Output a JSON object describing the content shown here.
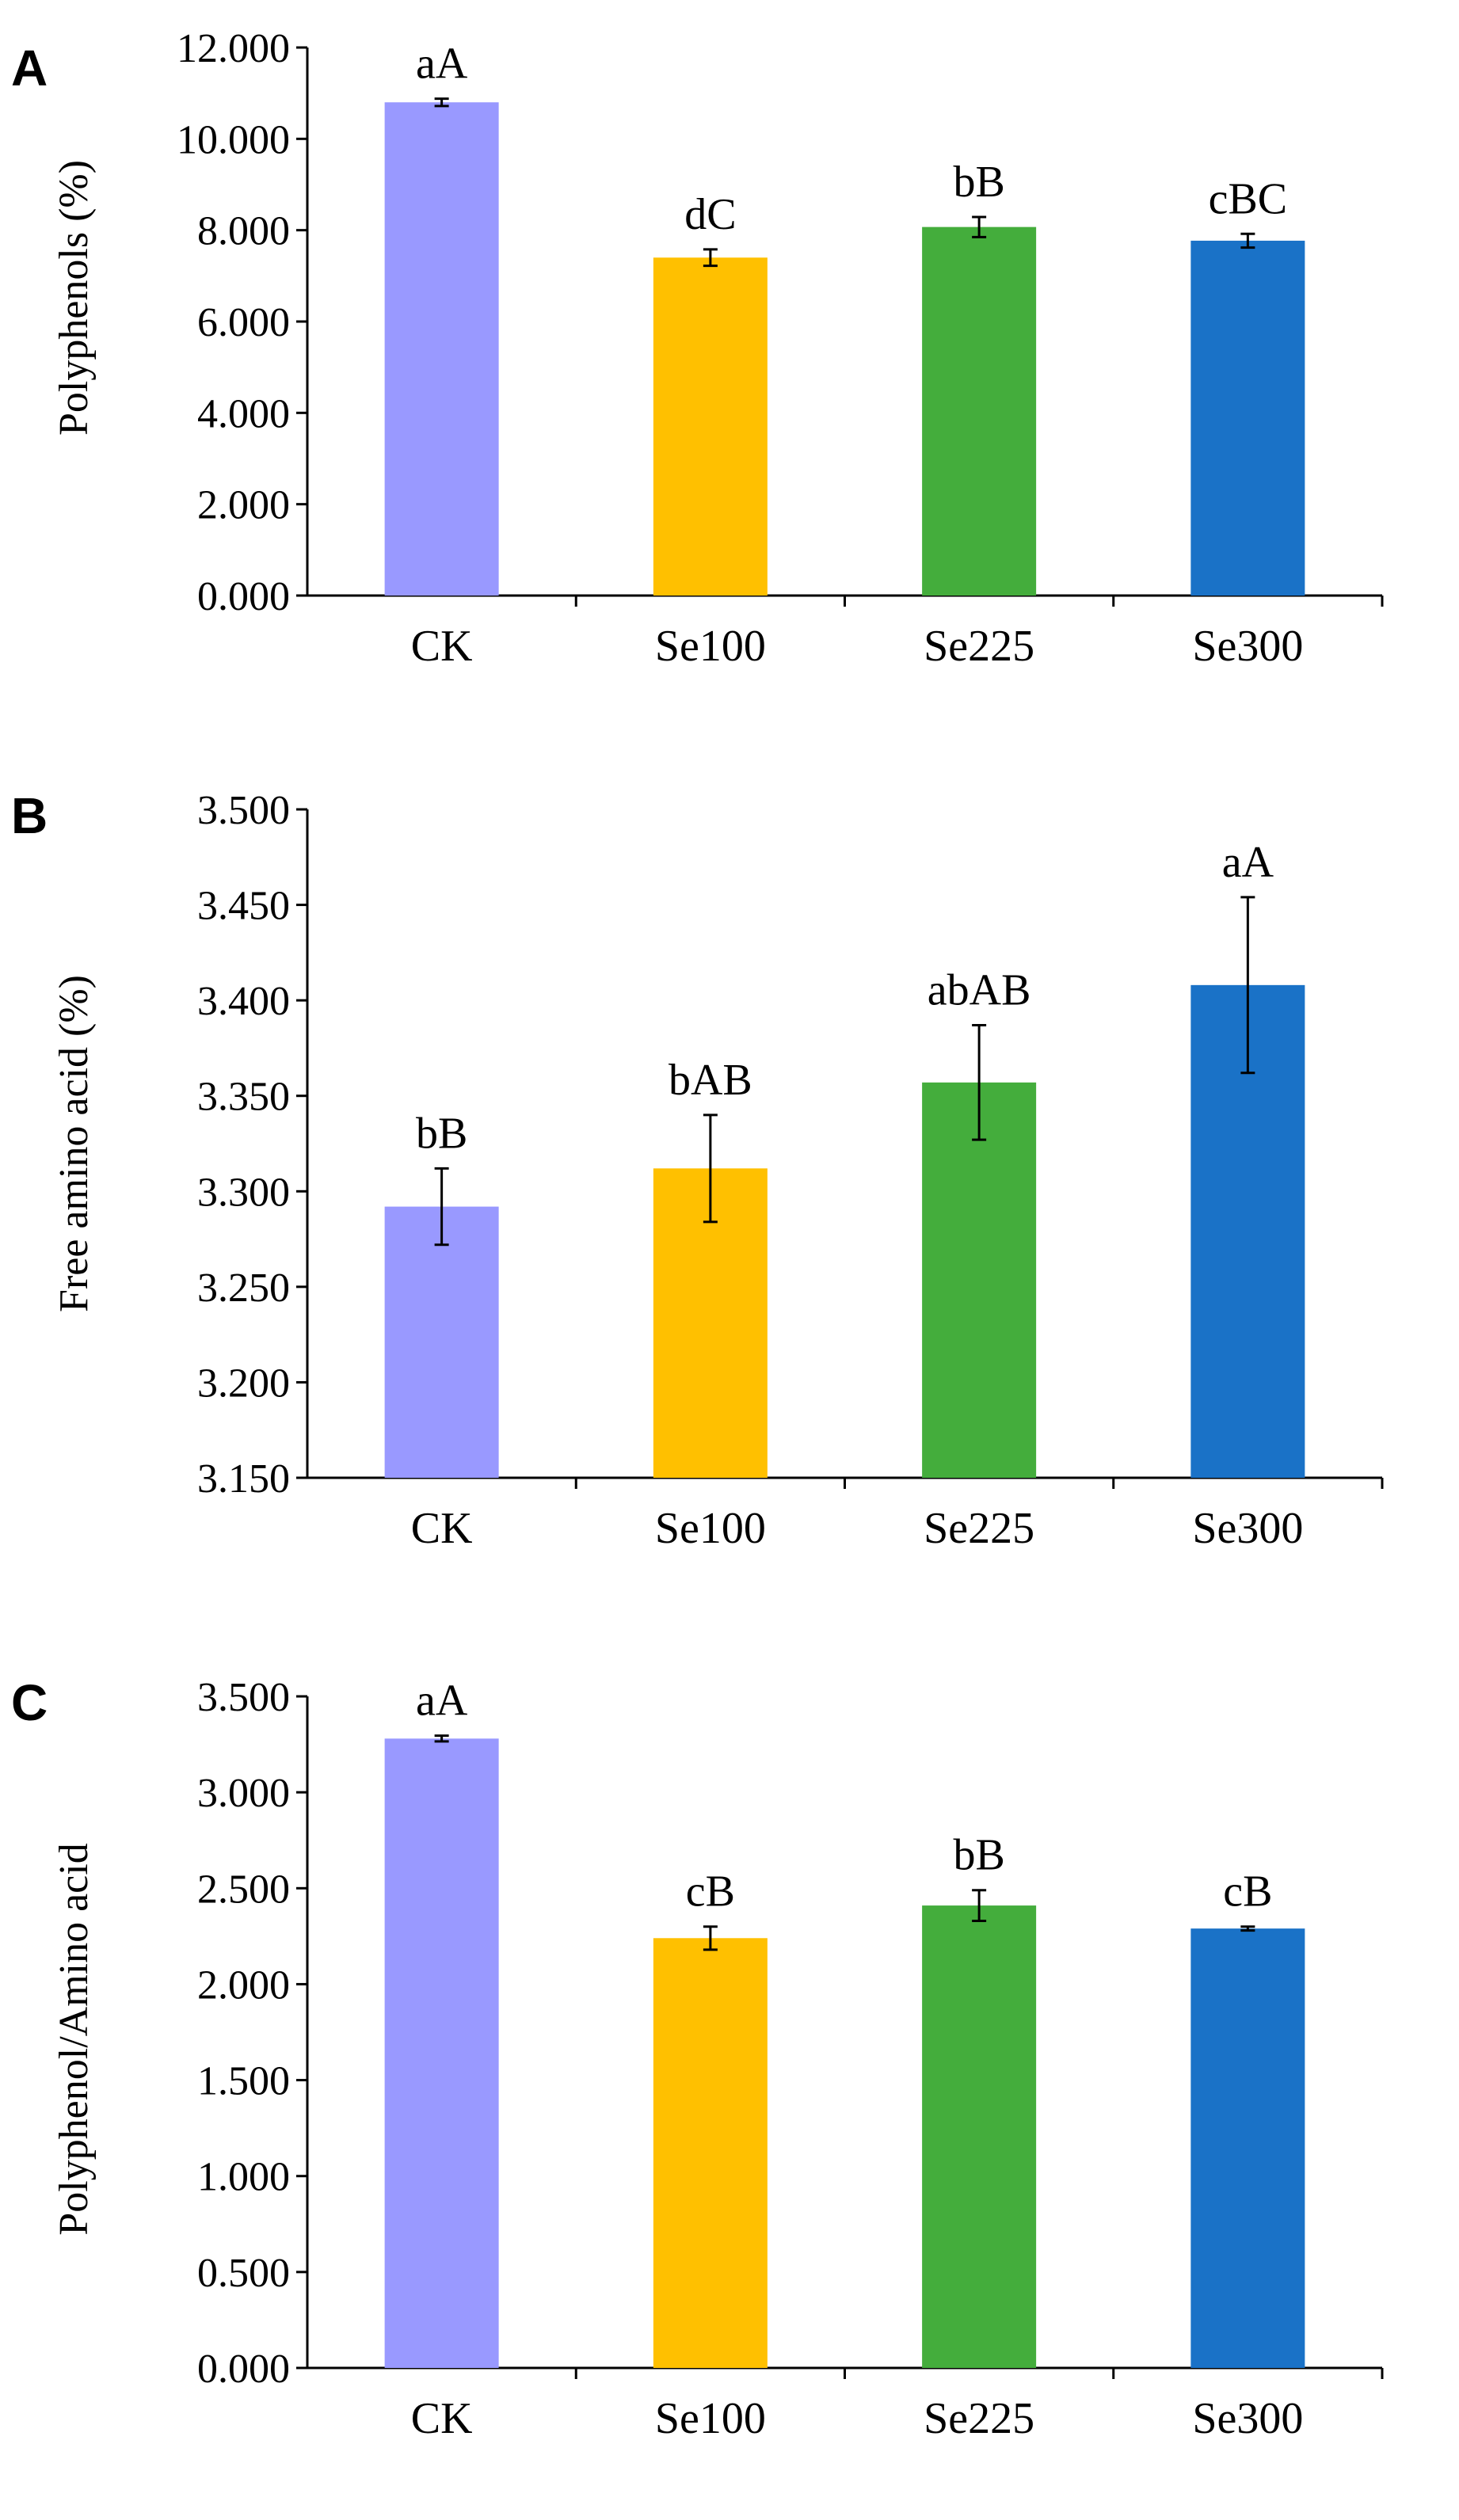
{
  "chart_data": [
    {
      "type": "bar",
      "panel_label": "A",
      "title": "",
      "xlabel": "",
      "ylabel": "Polyphenols (%)",
      "ylim": [
        0,
        12
      ],
      "yticks": [
        "0.000",
        "2.000",
        "4.000",
        "6.000",
        "8.000",
        "10.000",
        "12.000"
      ],
      "categories": [
        "CK",
        "Se100",
        "Se225",
        "Se300"
      ],
      "values": [
        10.8,
        7.4,
        8.07,
        7.77
      ],
      "errors": [
        0.08,
        0.18,
        0.22,
        0.15
      ],
      "bar_labels": [
        "aA",
        "dC",
        "bB",
        "cBC"
      ],
      "colors": [
        "#9999ff",
        "#ffc000",
        "#44ad3c",
        "#1a72c7"
      ],
      "grid": false
    },
    {
      "type": "bar",
      "panel_label": "B",
      "title": "",
      "xlabel": "",
      "ylabel": "Free amino acid (%)",
      "ylim": [
        3.15,
        3.5
      ],
      "yticks": [
        "3.150",
        "3.200",
        "3.250",
        "3.300",
        "3.350",
        "3.400",
        "3.450",
        "3.500"
      ],
      "categories": [
        "CK",
        "Se100",
        "Se225",
        "Se300"
      ],
      "values": [
        3.292,
        3.312,
        3.357,
        3.408
      ],
      "errors": [
        0.02,
        0.028,
        0.03,
        0.046
      ],
      "bar_labels": [
        "bB",
        "bAB",
        "abAB",
        "aA"
      ],
      "colors": [
        "#9999ff",
        "#ffc000",
        "#44ad3c",
        "#1a72c7"
      ],
      "grid": false
    },
    {
      "type": "bar",
      "panel_label": "C",
      "title": "",
      "xlabel": "",
      "ylabel": "Polyphenol/Amino acid",
      "ylim": [
        0,
        3.5
      ],
      "yticks": [
        "0.000",
        "0.500",
        "1.000",
        "1.500",
        "2.000",
        "2.500",
        "3.000",
        "3.500"
      ],
      "categories": [
        "CK",
        "Se100",
        "Se225",
        "Se300"
      ],
      "values": [
        3.28,
        2.24,
        2.41,
        2.29
      ],
      "errors": [
        0.015,
        0.06,
        0.08,
        0.01
      ],
      "bar_labels": [
        "aA",
        "cB",
        "bB",
        "cB"
      ],
      "colors": [
        "#9999ff",
        "#ffc000",
        "#44ad3c",
        "#1a72c7"
      ],
      "grid": false
    }
  ]
}
